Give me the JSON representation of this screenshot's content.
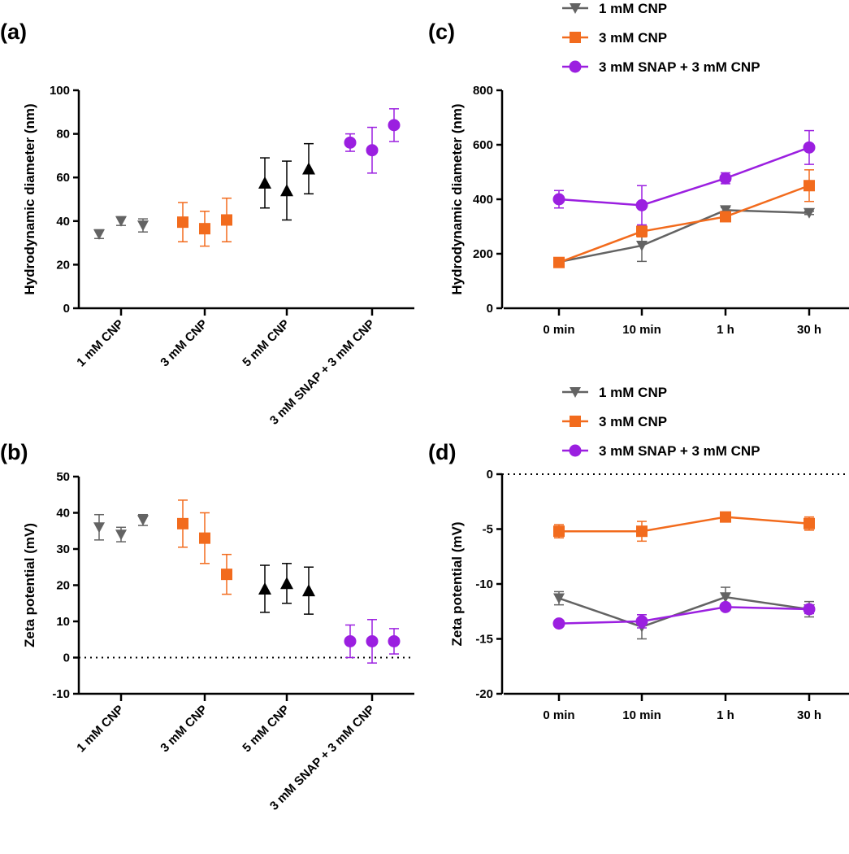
{
  "chart_data": [
    {
      "id": "a",
      "panel_label": "(a)",
      "type": "scatter",
      "ylabel": "Hydrodynamic diameter (nm)",
      "ylim": [
        0,
        100
      ],
      "yticks": [
        0,
        20,
        40,
        60,
        80,
        100
      ],
      "categories": [
        "1 mM CNP",
        "3 mM CNP",
        "5 mM CNP",
        "3 mM SNAP + 3 mM CNP"
      ],
      "zero_line": false,
      "groups": [
        {
          "name": "1 mM CNP",
          "color": "#636363",
          "marker": "triangle-down",
          "points": [
            {
              "value": 34,
              "err": 2
            },
            {
              "value": 40,
              "err": 2
            },
            {
              "value": 38,
              "err": 3
            }
          ]
        },
        {
          "name": "3 mM CNP",
          "color": "#f26b1d",
          "marker": "square",
          "points": [
            {
              "value": 39.5,
              "err": 9
            },
            {
              "value": 36.5,
              "err": 8
            },
            {
              "value": 40.5,
              "err": 10
            }
          ]
        },
        {
          "name": "5 mM CNP",
          "color": "#000000",
          "marker": "triangle-up",
          "points": [
            {
              "value": 57.5,
              "err": 11.5
            },
            {
              "value": 54,
              "err": 13.5
            },
            {
              "value": 64,
              "err": 11.5
            }
          ]
        },
        {
          "name": "3 mM SNAP + 3 mM CNP",
          "color": "#9b1fe0",
          "marker": "circle",
          "points": [
            {
              "value": 76,
              "err": 4
            },
            {
              "value": 72.5,
              "err": 10.5
            },
            {
              "value": 84,
              "err": 7.5
            }
          ]
        }
      ]
    },
    {
      "id": "b",
      "panel_label": "(b)",
      "type": "scatter",
      "ylabel": "Zeta potential (mV)",
      "ylim": [
        -10,
        50
      ],
      "yticks": [
        -10,
        0,
        10,
        20,
        30,
        40,
        50
      ],
      "categories": [
        "1 mM CNP",
        "3 mM CNP",
        "5 mM CNP",
        "3 mM SNAP + 3 mM CNP"
      ],
      "zero_line": true,
      "groups": [
        {
          "name": "1 mM CNP",
          "color": "#636363",
          "marker": "triangle-down",
          "points": [
            {
              "value": 36,
              "err": 3.5
            },
            {
              "value": 34,
              "err": 2
            },
            {
              "value": 38,
              "err": 1.5
            }
          ]
        },
        {
          "name": "3 mM CNP",
          "color": "#f26b1d",
          "marker": "square",
          "points": [
            {
              "value": 37,
              "err": 6.5
            },
            {
              "value": 33,
              "err": 7
            },
            {
              "value": 23,
              "err": 5.5
            }
          ]
        },
        {
          "name": "5 mM CNP",
          "color": "#000000",
          "marker": "triangle-up",
          "points": [
            {
              "value": 19,
              "err": 6.5
            },
            {
              "value": 20.5,
              "err": 5.5
            },
            {
              "value": 18.5,
              "err": 6.5
            }
          ]
        },
        {
          "name": "3 mM SNAP + 3 mM CNP",
          "color": "#9b1fe0",
          "marker": "circle",
          "points": [
            {
              "value": 4.5,
              "err": 4.5
            },
            {
              "value": 4.5,
              "err": 6
            },
            {
              "value": 4.5,
              "err": 3.5
            }
          ]
        }
      ]
    },
    {
      "id": "c",
      "panel_label": "(c)",
      "type": "line",
      "ylabel": "Hydrodynamic diameter (nm)",
      "ylim": [
        0,
        800
      ],
      "yticks": [
        0,
        200,
        400,
        600,
        800
      ],
      "x": [
        "0 min",
        "10 min",
        "1 h",
        "30 h"
      ],
      "zero_line": false,
      "legend_position": "top",
      "series": [
        {
          "name": "1 mM CNP",
          "color": "#636363",
          "marker": "triangle-down",
          "values": [
            170,
            230,
            360,
            350
          ],
          "errors": [
            8,
            58,
            10,
            6
          ]
        },
        {
          "name": "3 mM CNP",
          "color": "#f26b1d",
          "marker": "square",
          "values": [
            168,
            282,
            336,
            450
          ],
          "errors": [
            6,
            20,
            15,
            58
          ]
        },
        {
          "name": "3 mM SNAP + 3 mM CNP",
          "color": "#9b1fe0",
          "marker": "circle",
          "values": [
            400,
            378,
            477,
            590
          ],
          "errors": [
            32,
            72,
            20,
            62
          ]
        }
      ]
    },
    {
      "id": "d",
      "panel_label": "(d)",
      "type": "line",
      "ylabel": "Zeta potential (mV)",
      "ylim": [
        -20,
        0
      ],
      "yticks": [
        -20,
        -15,
        -10,
        -5,
        0
      ],
      "x": [
        "0 min",
        "10 min",
        "1 h",
        "30 h"
      ],
      "zero_line": true,
      "legend_position": "top",
      "series": [
        {
          "name": "1 mM CNP",
          "color": "#636363",
          "marker": "triangle-down",
          "values": [
            -11.3,
            -13.9,
            -11.2,
            -12.3
          ],
          "errors": [
            0.6,
            1.1,
            0.9,
            0.7
          ]
        },
        {
          "name": "3 mM CNP",
          "color": "#f26b1d",
          "marker": "square",
          "values": [
            -5.2,
            -5.2,
            -3.9,
            -4.5
          ],
          "errors": [
            0.6,
            0.9,
            0.2,
            0.6
          ]
        },
        {
          "name": "3 mM SNAP + 3 mM CNP",
          "color": "#9b1fe0",
          "marker": "circle",
          "values": [
            -13.6,
            -13.4,
            -12.1,
            -12.3
          ],
          "errors": [
            0.2,
            0.6,
            0.3,
            0.4
          ]
        }
      ]
    }
  ]
}
